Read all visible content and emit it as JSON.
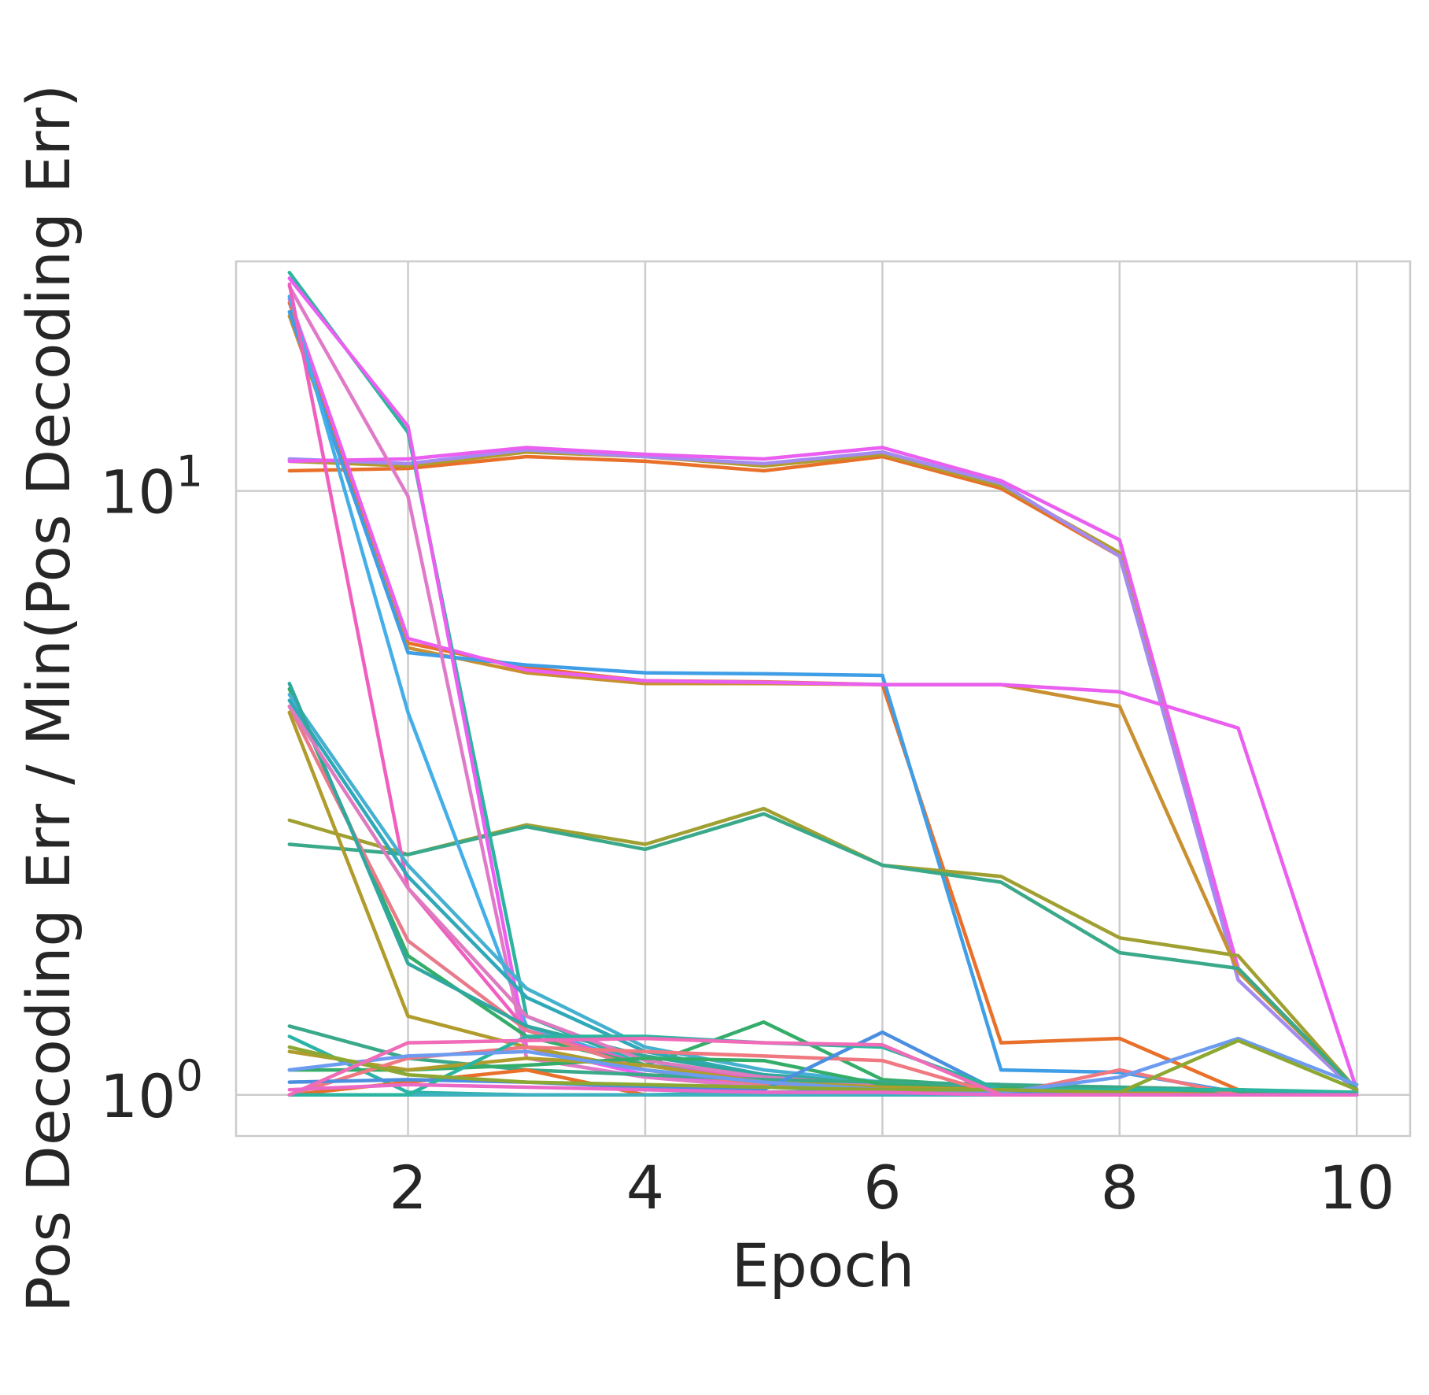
{
  "chart_data": {
    "type": "line",
    "xlabel": "Epoch",
    "ylabel": "Pos Decoding Err / Min(Pos Decoding Err)",
    "xlim": [
      0.55,
      10.45
    ],
    "ylim": [
      0.855,
      24.0
    ],
    "y_scale": "log",
    "x_ticks": [
      2,
      4,
      6,
      8,
      10
    ],
    "y_ticks": [
      {
        "value": 1,
        "base": "10",
        "exp": "0"
      },
      {
        "value": 10,
        "base": "10",
        "exp": "1"
      }
    ],
    "grid": true,
    "series": [
      {
        "color": "#e8702a",
        "x": [
          1,
          2,
          3,
          4,
          5,
          6,
          7,
          8,
          9,
          10
        ],
        "y": [
          10.8,
          10.9,
          11.4,
          11.2,
          10.8,
          11.4,
          10.1,
          7.8,
          1.6,
          1.02
        ]
      },
      {
        "color": "#b09c2c",
        "x": [
          1,
          2,
          3,
          4,
          5,
          6,
          7,
          8,
          9,
          10
        ],
        "y": [
          11.2,
          11.0,
          11.6,
          11.4,
          11.0,
          11.5,
          10.2,
          7.9,
          1.62,
          1.02
        ]
      },
      {
        "color": "#a48bf0",
        "x": [
          1,
          2,
          3,
          4,
          5,
          6,
          7,
          8,
          9,
          10
        ],
        "y": [
          11.3,
          11.1,
          11.7,
          11.4,
          11.1,
          11.6,
          10.3,
          7.8,
          1.55,
          1.01
        ]
      },
      {
        "color": "#ea5ef0",
        "x": [
          1,
          2,
          3,
          4,
          5,
          6,
          7,
          8,
          9,
          10
        ],
        "y": [
          11.2,
          11.3,
          11.8,
          11.5,
          11.3,
          11.8,
          10.4,
          8.3,
          1.62,
          1.02
        ]
      },
      {
        "color": "#e8702a",
        "x": [
          1,
          2,
          3,
          4,
          5,
          6,
          7,
          8,
          9,
          10
        ],
        "y": [
          20.5,
          5.6,
          5.1,
          4.85,
          4.83,
          4.78,
          1.22,
          1.24,
          1.02,
          1.0
        ]
      },
      {
        "color": "#c89030",
        "x": [
          1,
          2,
          3,
          4,
          5,
          6,
          7,
          8,
          9,
          10
        ],
        "y": [
          19.5,
          5.5,
          5.0,
          4.8,
          4.8,
          4.78,
          4.78,
          4.4,
          1.6,
          1.02
        ]
      },
      {
        "color": "#3f9ee6",
        "x": [
          1,
          2,
          3,
          4,
          5,
          6,
          7,
          8,
          9,
          10
        ],
        "y": [
          19.8,
          5.4,
          5.15,
          5.0,
          4.98,
          4.95,
          1.1,
          1.09,
          1.01,
          1.0
        ]
      },
      {
        "color": "#ea5ef0",
        "x": [
          1,
          2,
          3,
          4,
          5,
          6,
          7,
          8,
          9,
          10
        ],
        "y": [
          20.8,
          5.7,
          5.05,
          4.85,
          4.82,
          4.78,
          4.78,
          4.65,
          4.05,
          1.02
        ]
      },
      {
        "color": "#a0a032",
        "x": [
          1,
          2,
          3,
          4,
          5,
          6,
          7,
          8,
          9,
          10
        ],
        "y": [
          2.85,
          2.5,
          2.8,
          2.6,
          2.98,
          2.4,
          2.3,
          1.82,
          1.7,
          1.02
        ]
      },
      {
        "color": "#3aa98a",
        "x": [
          1,
          2,
          3,
          4,
          5,
          6,
          7,
          8,
          9,
          10
        ],
        "y": [
          2.6,
          2.5,
          2.78,
          2.55,
          2.92,
          2.4,
          2.25,
          1.72,
          1.62,
          1.02
        ]
      },
      {
        "color": "#2bb5a0",
        "x": [
          1,
          2,
          3,
          4,
          5,
          6,
          7,
          8,
          9,
          10
        ],
        "y": [
          23.0,
          12.5,
          1.35,
          1.12,
          1.08,
          1.05,
          1.04,
          1.02,
          1.01,
          1.0
        ]
      },
      {
        "color": "#44aee8",
        "x": [
          1,
          2,
          3,
          4,
          5,
          6,
          7,
          8,
          9,
          10
        ],
        "y": [
          21.0,
          4.3,
          1.3,
          1.12,
          1.06,
          1.04,
          1.02,
          1.01,
          1.0,
          1.0
        ]
      },
      {
        "color": "#ea5ef0",
        "x": [
          1,
          2,
          3,
          4,
          5,
          6,
          7,
          8,
          9,
          10
        ],
        "y": [
          22.5,
          12.8,
          1.2,
          1.08,
          1.04,
          1.02,
          1.01,
          1.0,
          1.0,
          1.0
        ]
      },
      {
        "color": "#e07ac8",
        "x": [
          1,
          2,
          3,
          4,
          5,
          6,
          7,
          8,
          9,
          10
        ],
        "y": [
          21.8,
          9.8,
          1.15,
          1.07,
          1.03,
          1.02,
          1.01,
          1.0,
          1.0,
          1.0
        ]
      },
      {
        "color": "#f05fc0",
        "x": [
          1,
          2,
          3,
          4,
          5,
          6,
          7,
          8,
          9,
          10
        ],
        "y": [
          22.0,
          2.2,
          1.28,
          1.12,
          1.06,
          1.04,
          1.02,
          1.01,
          1.0,
          1.0
        ]
      },
      {
        "color": "#35ad6a",
        "x": [
          1,
          2,
          3,
          4,
          5,
          6,
          7,
          8,
          9,
          10
        ],
        "y": [
          4.7,
          1.7,
          1.25,
          1.12,
          1.32,
          1.06,
          1.03,
          1.02,
          1.01,
          1.0
        ]
      },
      {
        "color": "#e87a8a",
        "x": [
          1,
          2,
          3,
          4,
          5,
          6,
          7,
          8,
          9,
          10
        ],
        "y": [
          4.4,
          1.8,
          1.28,
          1.1,
          1.04,
          1.02,
          1.01,
          1.0,
          1.0,
          1.0
        ]
      },
      {
        "color": "#2fa8b8",
        "x": [
          1,
          2,
          3,
          4,
          5,
          6,
          7,
          8,
          9,
          10
        ],
        "y": [
          4.5,
          2.3,
          1.45,
          1.18,
          1.08,
          1.04,
          1.02,
          1.01,
          1.0,
          1.0
        ]
      },
      {
        "color": "#46b0d0",
        "x": [
          1,
          2,
          3,
          4,
          5,
          6,
          7,
          8,
          9,
          10
        ],
        "y": [
          4.6,
          2.4,
          1.5,
          1.2,
          1.1,
          1.05,
          1.02,
          1.01,
          1.0,
          1.0
        ]
      },
      {
        "color": "#30a8a0",
        "x": [
          1,
          2,
          3,
          4,
          5,
          6,
          7,
          8,
          9,
          10
        ],
        "y": [
          4.8,
          1.65,
          1.3,
          1.16,
          1.08,
          1.04,
          1.02,
          1.01,
          1.0,
          1.0
        ]
      },
      {
        "color": "#de7abf",
        "x": [
          1,
          2,
          3,
          4,
          5,
          6,
          7,
          8,
          9,
          10
        ],
        "y": [
          4.4,
          2.2,
          1.35,
          1.14,
          1.07,
          1.04,
          1.02,
          1.01,
          1.0,
          1.0
        ]
      },
      {
        "color": "#b09c2c",
        "x": [
          1,
          2,
          3,
          4,
          5,
          6,
          7,
          8,
          9,
          10
        ],
        "y": [
          4.3,
          1.35,
          1.2,
          1.1,
          1.05,
          1.03,
          1.02,
          1.01,
          1.0,
          1.0
        ]
      },
      {
        "color": "#3aa98a",
        "x": [
          1,
          2,
          3,
          4,
          5,
          6,
          7,
          8,
          9,
          10
        ],
        "y": [
          1.3,
          1.15,
          1.1,
          1.08,
          1.06,
          1.05,
          1.04,
          1.03,
          1.02,
          1.0
        ]
      },
      {
        "color": "#2cb3a8",
        "x": [
          1,
          2,
          3,
          4,
          5,
          6,
          7,
          8,
          9,
          10
        ],
        "y": [
          1.25,
          1.01,
          1.0,
          1.0,
          1.01,
          1.02,
          1.0,
          1.0,
          1.0,
          1.0
        ]
      },
      {
        "color": "#35ad6a",
        "x": [
          1,
          2,
          3,
          4,
          5,
          6,
          7,
          8,
          9,
          10
        ],
        "y": [
          1.1,
          1.1,
          1.12,
          1.15,
          1.14,
          1.04,
          1.02,
          1.01,
          1.0,
          1.0
        ]
      },
      {
        "color": "#b09c2c",
        "x": [
          1,
          2,
          3,
          4,
          5,
          6,
          7,
          8,
          9,
          10
        ],
        "y": [
          1.18,
          1.1,
          1.15,
          1.12,
          1.05,
          1.03,
          1.02,
          1.01,
          1.0,
          1.0
        ]
      },
      {
        "color": "#e8702a",
        "x": [
          1,
          2,
          3,
          4,
          5,
          6,
          7,
          8,
          9,
          10
        ],
        "y": [
          1.0,
          1.05,
          1.1,
          1.0,
          1.0,
          1.0,
          1.0,
          1.0,
          1.0,
          1.0
        ]
      },
      {
        "color": "#f07880",
        "x": [
          1,
          2,
          3,
          4,
          5,
          6,
          7,
          8,
          9,
          10
        ],
        "y": [
          1.0,
          1.15,
          1.2,
          1.18,
          1.16,
          1.14,
          1.0,
          1.1,
          1.0,
          1.0
        ]
      },
      {
        "color": "#3fb0c0",
        "x": [
          1,
          2,
          3,
          4,
          5,
          6,
          7,
          8,
          9,
          10
        ],
        "y": [
          1.0,
          1.0,
          1.0,
          1.0,
          1.0,
          1.0,
          1.0,
          1.0,
          1.0,
          1.0
        ]
      },
      {
        "color": "#4b8fe0",
        "x": [
          1,
          2,
          3,
          4,
          5,
          6,
          7,
          8,
          9,
          10
        ],
        "y": [
          1.05,
          1.06,
          1.05,
          1.03,
          1.02,
          1.27,
          1.01,
          1.0,
          1.0,
          1.0
        ]
      },
      {
        "color": "#2bb5a0",
        "x": [
          1,
          2,
          3,
          4,
          5,
          6,
          7,
          8,
          9,
          10
        ],
        "y": [
          1.0,
          1.0,
          1.25,
          1.25,
          1.22,
          1.2,
          1.02,
          1.02,
          1.02,
          1.01
        ]
      },
      {
        "color": "#6c9bf0",
        "x": [
          1,
          2,
          3,
          4,
          5,
          6,
          7,
          8,
          9,
          10
        ],
        "y": [
          1.1,
          1.16,
          1.18,
          1.1,
          1.05,
          1.02,
          1.01,
          1.07,
          1.24,
          1.04
        ]
      },
      {
        "color": "#8da832",
        "x": [
          1,
          2,
          3,
          4,
          5,
          6,
          7,
          8,
          9,
          10
        ],
        "y": [
          1.2,
          1.08,
          1.05,
          1.04,
          1.03,
          1.02,
          1.02,
          1.01,
          1.23,
          1.02
        ]
      },
      {
        "color": "#f06bb8",
        "x": [
          1,
          2,
          3,
          4,
          5,
          6,
          7,
          8,
          9,
          10
        ],
        "y": [
          1.0,
          1.22,
          1.23,
          1.24,
          1.22,
          1.21,
          1.0,
          1.0,
          1.0,
          1.0
        ]
      },
      {
        "color": "#ea68c8",
        "x": [
          1,
          2,
          3,
          4,
          5,
          6,
          7,
          8,
          9,
          10
        ],
        "y": [
          1.02,
          1.04,
          1.03,
          1.02,
          1.01,
          1.01,
          1.0,
          1.0,
          1.0,
          1.0
        ]
      }
    ]
  }
}
